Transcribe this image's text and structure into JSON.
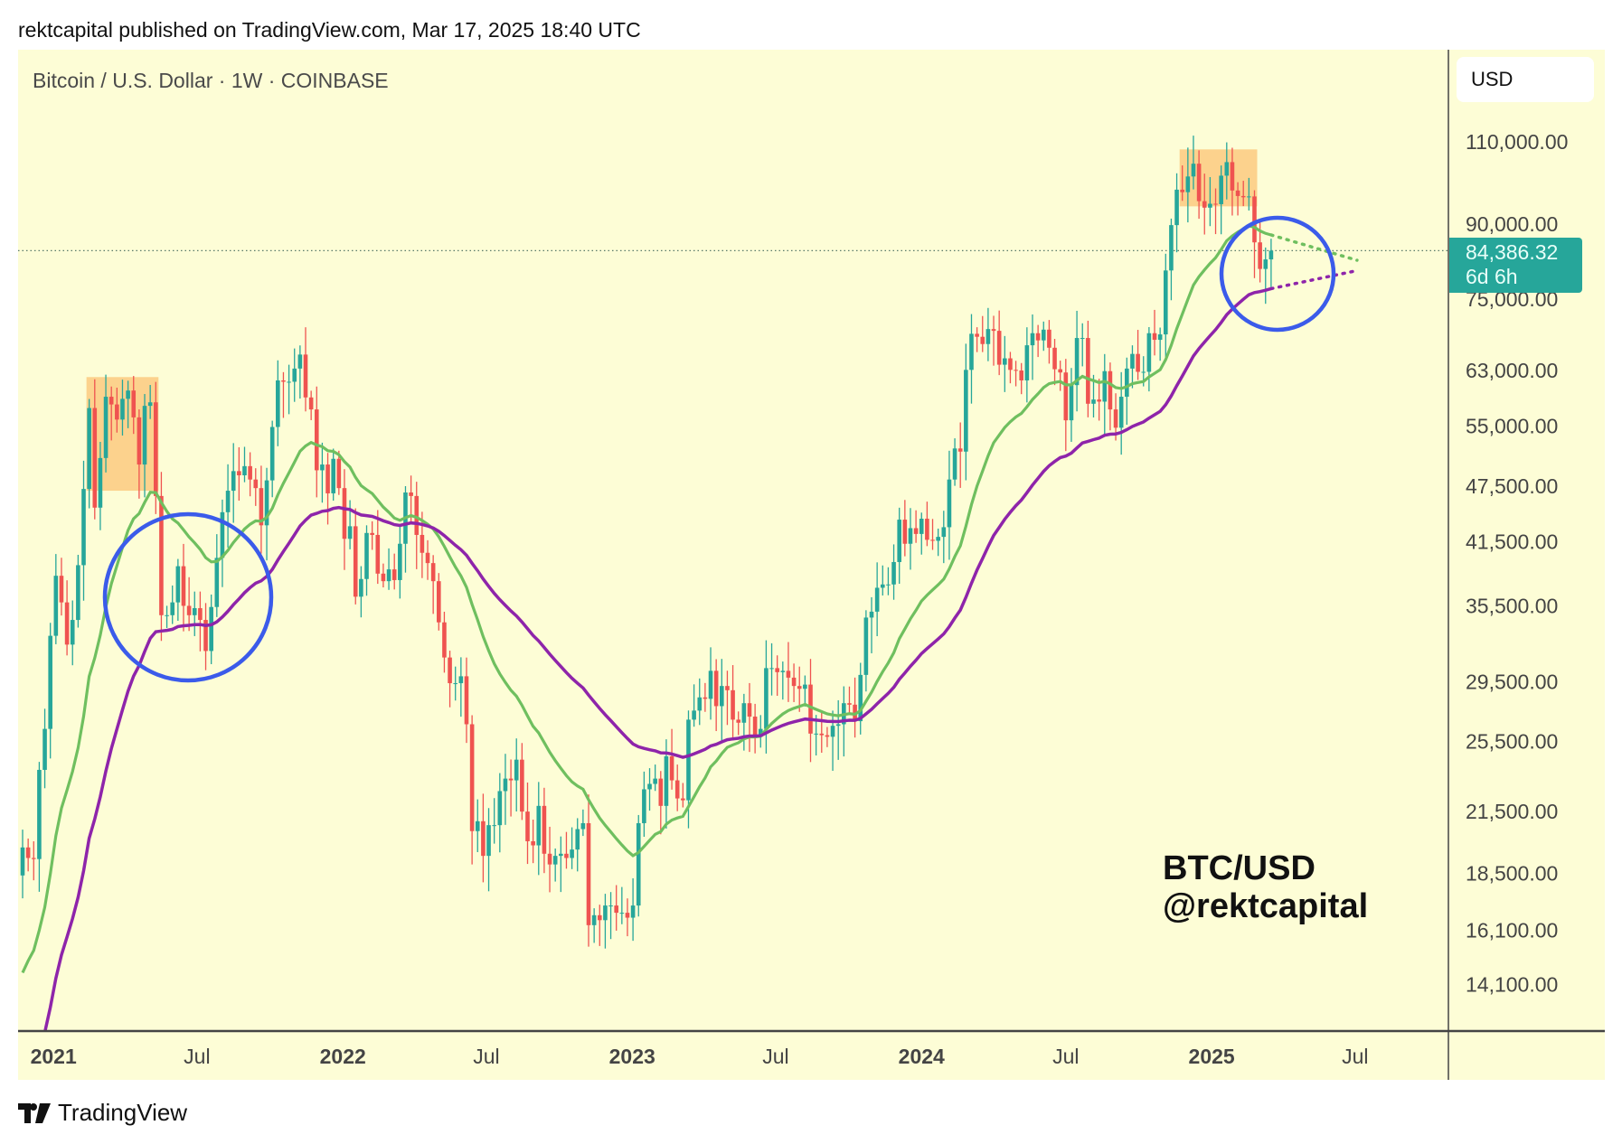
{
  "header": {
    "published": "rektcapital published on TradingView.com, Mar 17, 2025 18:40 UTC"
  },
  "chart_title": "Bitcoin / U.S. Dollar · 1W · COINBASE",
  "currency": "USD",
  "last_price": {
    "value": "84,386.32",
    "countdown": "6d 6h"
  },
  "annotation": {
    "line1": "BTC/USD",
    "line2": "@rektcapital"
  },
  "footer": {
    "brand": "TradingView"
  },
  "colors": {
    "background": "#fdfdd6",
    "up": "#26a69a",
    "down": "#ef5350",
    "ema_fast": "#6fbf5f",
    "ema_slow": "#8e24aa",
    "circle": "#3b5bea",
    "highlight": "#fbc77a"
  },
  "chart_data": {
    "type": "candlestick",
    "scale": "log",
    "interval": "1W",
    "start_week": "2020-11-23",
    "ylim": [
      12500,
      118000
    ],
    "yticks": [
      "110,000.00",
      "90,000.00",
      "75,000.00",
      "63,000.00",
      "55,000.00",
      "47,500.00",
      "41,500.00",
      "35,500.00",
      "29,500.00",
      "25,500.00",
      "21,500.00",
      "18,500.00",
      "16,100.00",
      "14,100.00"
    ],
    "xticks": [
      {
        "label": "2021",
        "bold": true,
        "date": "2021-01-01"
      },
      {
        "label": "Jul",
        "bold": false,
        "date": "2021-07-01"
      },
      {
        "label": "2022",
        "bold": true,
        "date": "2022-01-01"
      },
      {
        "label": "Jul",
        "bold": false,
        "date": "2022-07-01"
      },
      {
        "label": "2023",
        "bold": true,
        "date": "2023-01-01"
      },
      {
        "label": "Jul",
        "bold": false,
        "date": "2023-07-01"
      },
      {
        "label": "2024",
        "bold": true,
        "date": "2024-01-01"
      },
      {
        "label": "Jul",
        "bold": false,
        "date": "2024-07-01"
      },
      {
        "label": "2025",
        "bold": true,
        "date": "2025-01-01"
      },
      {
        "label": "Jul",
        "bold": false,
        "date": "2025-07-01"
      }
    ],
    "weekly_close": [
      19700,
      19200,
      19150,
      23800,
      26300,
      33000,
      38200,
      35800,
      32300,
      34300,
      39200,
      47200,
      57500,
      45100,
      50900,
      59100,
      58000,
      55900,
      58800,
      60000,
      56200,
      50100,
      57800,
      58300,
      46400,
      34700,
      34700,
      35800,
      39100,
      35500,
      34700,
      35300,
      34300,
      31800,
      35400,
      39900,
      44600,
      47000,
      49300,
      48800,
      49900,
      48300,
      47300,
      43200,
      48200,
      54900,
      61500,
      61300,
      61300,
      63300,
      65500,
      59000,
      57300,
      49400,
      50100,
      46700,
      50800,
      47300,
      41800,
      43100,
      36300,
      37900,
      42400,
      42200,
      38400,
      37700,
      38800,
      37800,
      41300,
      46800,
      46400,
      42200,
      40400,
      39400,
      37700,
      34100,
      31300,
      29400,
      29400,
      29900,
      26600,
      20500,
      21000,
      19300,
      20800,
      20800,
      22600,
      23300,
      23200,
      24400,
      21500,
      20000,
      19800,
      21800,
      19400,
      18900,
      19300,
      19400,
      19200,
      19600,
      20600,
      20900,
      16300,
      16700,
      16500,
      17100,
      17100,
      16800,
      16800,
      16600,
      17100,
      20900,
      22700,
      23000,
      23300,
      21800,
      24600,
      23200,
      22200,
      22100,
      26900,
      27500,
      28400,
      28300,
      30300,
      27800,
      29200,
      28900,
      26900,
      26700,
      28000,
      27100,
      25800,
      26300,
      30500,
      30500,
      30200,
      30300,
      29800,
      29200,
      29000,
      29300,
      26000,
      26000,
      25900,
      25800,
      26500,
      26600,
      28000,
      27900,
      26800,
      30000,
      34500,
      35000,
      37100,
      37400,
      37400,
      39500,
      43800,
      41300,
      42900,
      42300,
      43900,
      41700,
      41600,
      42000,
      43000,
      48300,
      52100,
      51700,
      63100,
      68900,
      68400,
      67200,
      69700,
      69400,
      63900,
      64900,
      63100,
      63000,
      61500,
      67000,
      69000,
      67800,
      69600,
      66600,
      63200,
      62700,
      55800,
      60800,
      68200,
      68200,
      58100,
      58700,
      58400,
      62900,
      57300,
      54800,
      59100,
      63300,
      65600,
      62800,
      62800,
      69000,
      67900,
      68800,
      80400,
      89800,
      97900,
      97300,
      101100,
      104300,
      95200,
      93700,
      94600,
      94500,
      101300,
      104700,
      97700,
      96400,
      96100,
      96300,
      86100,
      80700,
      82600,
      84386.32
    ],
    "first_open": 18400,
    "indicators": [
      {
        "type": "EMA",
        "length": 21,
        "color": "#6fbf5f"
      },
      {
        "type": "EMA",
        "length": 50,
        "color": "#8e24aa"
      }
    ],
    "highlight_ranges": [
      {
        "from": "2021-02-15",
        "to": "2021-05-10",
        "low": 47000,
        "high": 62000
      },
      {
        "from": "2024-11-25",
        "to": "2025-02-24",
        "low": 94000,
        "high": 108000
      }
    ],
    "circled_regions": [
      "2021 mid-cycle retest",
      "2025 current retest"
    ]
  }
}
